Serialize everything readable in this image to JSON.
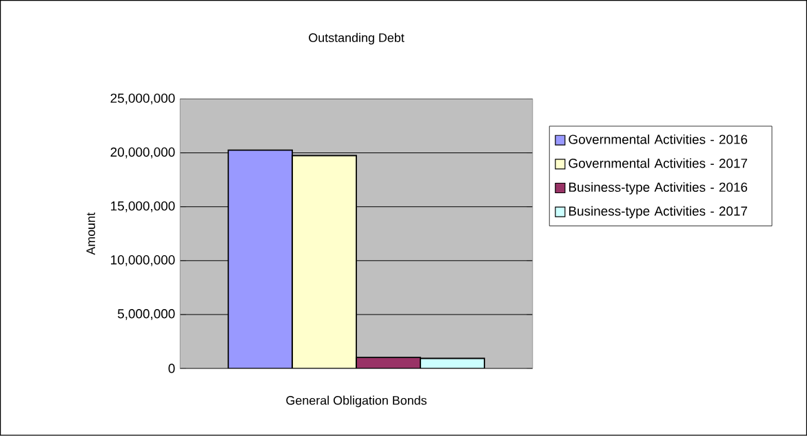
{
  "chart_data": {
    "type": "bar",
    "title": "Outstanding Debt",
    "ylabel": "Amount",
    "categories": [
      "General Obligation Bonds"
    ],
    "series": [
      {
        "name": "Governmental Activities - 2016",
        "color": "#9999ff",
        "values": [
          20250000
        ]
      },
      {
        "name": "Governmental Activities - 2017",
        "color": "#ffffcc",
        "values": [
          19750000
        ]
      },
      {
        "name": "Business-type Activities - 2016",
        "color": "#993366",
        "values": [
          1020000
        ]
      },
      {
        "name": "Business-type Activities - 2017",
        "color": "#ccffff",
        "values": [
          930000
        ]
      }
    ],
    "ylim": [
      0,
      25000000
    ],
    "yticks": [
      {
        "value": 0,
        "label": "0"
      },
      {
        "value": 5000000,
        "label": "5,000,000"
      },
      {
        "value": 10000000,
        "label": "10,000,000"
      },
      {
        "value": 15000000,
        "label": "15,000,000"
      },
      {
        "value": 20000000,
        "label": "20,000,000"
      },
      {
        "value": 25000000,
        "label": "25,000,000"
      }
    ],
    "grid": "y",
    "legend": "right"
  }
}
